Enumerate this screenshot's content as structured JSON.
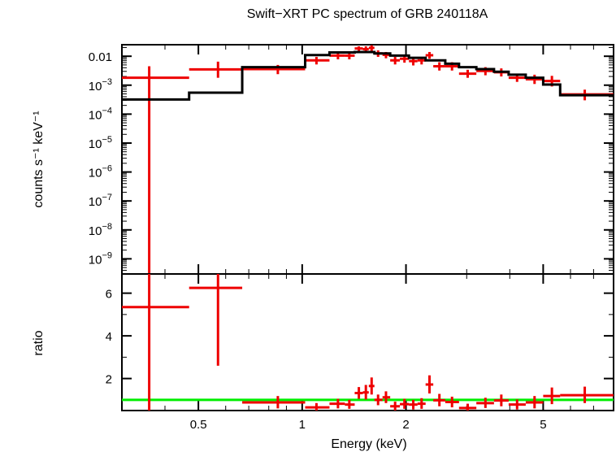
{
  "chart_data": {
    "type": "scatter",
    "title": "Swift−XRT PC spectrum of GRB 240118A",
    "xlabel": "Energy (keV)",
    "xscale": "log",
    "xlim": [
      0.3,
      8.0
    ],
    "x_ticks": [
      {
        "value": 0.5,
        "label": "0.5"
      },
      {
        "value": 1,
        "label": "1"
      },
      {
        "value": 2,
        "label": "2"
      },
      {
        "value": 5,
        "label": "5"
      }
    ],
    "colors": {
      "data": "#ee0000",
      "model": "#000000",
      "unity": "#00ee00",
      "axes": "#000000"
    },
    "panels": [
      {
        "name": "spectrum",
        "ylabel": "counts s⁻¹ keV⁻¹",
        "yscale": "log",
        "ylim": [
          3e-10,
          0.025
        ],
        "y_ticks": [
          {
            "value": 0.01,
            "label": "0.01"
          },
          {
            "value": 0.001,
            "base": "10",
            "exp": "−3"
          },
          {
            "value": 0.0001,
            "base": "10",
            "exp": "−4"
          },
          {
            "value": 1e-05,
            "base": "10",
            "exp": "−5"
          },
          {
            "value": 1e-06,
            "base": "10",
            "exp": "−6"
          },
          {
            "value": 1e-07,
            "base": "10",
            "exp": "−7"
          },
          {
            "value": 1e-08,
            "base": "10",
            "exp": "−8"
          },
          {
            "value": 1e-09,
            "base": "10",
            "exp": "−9"
          }
        ],
        "series": [
          {
            "style": "crosses",
            "points": [
              {
                "xlo": 0.3,
                "x": 0.36,
                "xhi": 0.47,
                "y": 0.0018,
                "ylo": 3e-10,
                "yhi": 0.0045
              },
              {
                "xlo": 0.47,
                "x": 0.57,
                "xhi": 0.67,
                "y": 0.0035,
                "ylo": 0.0018,
                "yhi": 0.0065
              },
              {
                "xlo": 0.67,
                "x": 0.85,
                "xhi": 1.02,
                "y": 0.0036,
                "ylo": 0.0024,
                "yhi": 0.005
              },
              {
                "xlo": 1.02,
                "x": 1.1,
                "xhi": 1.2,
                "y": 0.0072,
                "ylo": 0.0052,
                "yhi": 0.0095
              },
              {
                "xlo": 1.2,
                "x": 1.27,
                "xhi": 1.33,
                "y": 0.0105,
                "ylo": 0.0078,
                "yhi": 0.0135
              },
              {
                "xlo": 1.33,
                "x": 1.37,
                "xhi": 1.42,
                "y": 0.0105,
                "ylo": 0.0078,
                "yhi": 0.0135
              },
              {
                "xlo": 1.42,
                "x": 1.46,
                "xhi": 1.5,
                "y": 0.0185,
                "ylo": 0.015,
                "yhi": 0.022
              },
              {
                "xlo": 1.5,
                "x": 1.53,
                "xhi": 1.56,
                "y": 0.0175,
                "ylo": 0.013,
                "yhi": 0.022
              },
              {
                "xlo": 1.56,
                "x": 1.59,
                "xhi": 1.62,
                "y": 0.0195,
                "ylo": 0.015,
                "yhi": 0.024
              },
              {
                "xlo": 1.62,
                "x": 1.66,
                "xhi": 1.71,
                "y": 0.0125,
                "ylo": 0.0095,
                "yhi": 0.016
              },
              {
                "xlo": 1.71,
                "x": 1.75,
                "xhi": 1.8,
                "y": 0.0112,
                "ylo": 0.0085,
                "yhi": 0.014
              },
              {
                "xlo": 1.8,
                "x": 1.86,
                "xhi": 1.92,
                "y": 0.0072,
                "ylo": 0.0052,
                "yhi": 0.0095
              },
              {
                "xlo": 1.92,
                "x": 1.98,
                "xhi": 2.04,
                "y": 0.0082,
                "ylo": 0.006,
                "yhi": 0.011
              },
              {
                "xlo": 2.04,
                "x": 2.1,
                "xhi": 2.16,
                "y": 0.0068,
                "ylo": 0.0048,
                "yhi": 0.009
              },
              {
                "xlo": 2.16,
                "x": 2.22,
                "xhi": 2.28,
                "y": 0.0072,
                "ylo": 0.0052,
                "yhi": 0.0095
              },
              {
                "xlo": 2.28,
                "x": 2.34,
                "xhi": 2.4,
                "y": 0.0108,
                "ylo": 0.0082,
                "yhi": 0.014
              },
              {
                "xlo": 2.4,
                "x": 2.5,
                "xhi": 2.6,
                "y": 0.0045,
                "ylo": 0.0032,
                "yhi": 0.0062
              },
              {
                "xlo": 2.6,
                "x": 2.72,
                "xhi": 2.85,
                "y": 0.0045,
                "ylo": 0.0032,
                "yhi": 0.0062
              },
              {
                "xlo": 2.85,
                "x": 3.02,
                "xhi": 3.2,
                "y": 0.0025,
                "ylo": 0.0018,
                "yhi": 0.0034
              },
              {
                "xlo": 3.2,
                "x": 3.4,
                "xhi": 3.6,
                "y": 0.0031,
                "ylo": 0.0022,
                "yhi": 0.0042
              },
              {
                "xlo": 3.6,
                "x": 3.78,
                "xhi": 3.97,
                "y": 0.0028,
                "ylo": 0.002,
                "yhi": 0.0038
              },
              {
                "xlo": 3.97,
                "x": 4.2,
                "xhi": 4.45,
                "y": 0.0018,
                "ylo": 0.0013,
                "yhi": 0.0025
              },
              {
                "xlo": 4.45,
                "x": 4.72,
                "xhi": 5.0,
                "y": 0.0016,
                "ylo": 0.0011,
                "yhi": 0.0023
              },
              {
                "xlo": 5.0,
                "x": 5.3,
                "xhi": 5.6,
                "y": 0.0014,
                "ylo": 0.0009,
                "yhi": 0.0021
              },
              {
                "xlo": 5.6,
                "x": 6.6,
                "xhi": 8.0,
                "y": 0.00048,
                "ylo": 0.0003,
                "yhi": 0.0007
              }
            ]
          },
          {
            "style": "steps",
            "steps": [
              {
                "xlo": 0.3,
                "xhi": 0.47,
                "y": 0.00032
              },
              {
                "xlo": 0.47,
                "xhi": 0.67,
                "y": 0.00055
              },
              {
                "xlo": 0.67,
                "xhi": 1.02,
                "y": 0.0042
              },
              {
                "xlo": 1.02,
                "xhi": 1.2,
                "y": 0.011
              },
              {
                "xlo": 1.2,
                "xhi": 1.42,
                "y": 0.0135
              },
              {
                "xlo": 1.42,
                "xhi": 1.62,
                "y": 0.014
              },
              {
                "xlo": 1.62,
                "xhi": 1.8,
                "y": 0.0125
              },
              {
                "xlo": 1.8,
                "xhi": 2.04,
                "y": 0.0105
              },
              {
                "xlo": 2.04,
                "xhi": 2.28,
                "y": 0.0088
              },
              {
                "xlo": 2.28,
                "xhi": 2.6,
                "y": 0.0072
              },
              {
                "xlo": 2.6,
                "xhi": 2.85,
                "y": 0.0055
              },
              {
                "xlo": 2.85,
                "xhi": 3.2,
                "y": 0.0042
              },
              {
                "xlo": 3.2,
                "xhi": 3.6,
                "y": 0.0036
              },
              {
                "xlo": 3.6,
                "xhi": 3.97,
                "y": 0.0029
              },
              {
                "xlo": 3.97,
                "xhi": 4.45,
                "y": 0.0023
              },
              {
                "xlo": 4.45,
                "xhi": 5.0,
                "y": 0.0018
              },
              {
                "xlo": 5.0,
                "xhi": 5.6,
                "y": 0.00105
              },
              {
                "xlo": 5.6,
                "xhi": 8.0,
                "y": 0.00045
              }
            ]
          }
        ]
      },
      {
        "name": "ratio",
        "ylabel": "ratio",
        "yscale": "linear",
        "ylim": [
          0.5,
          6.9
        ],
        "y_ticks": [
          {
            "value": 2,
            "label": "2"
          },
          {
            "value": 4,
            "label": "4"
          },
          {
            "value": 6,
            "label": "6"
          }
        ],
        "reference_line": 1.0,
        "series": [
          {
            "style": "crosses",
            "points": [
              {
                "xlo": 0.3,
                "x": 0.36,
                "xhi": 0.47,
                "y": 5.35,
                "ylo": 0.5,
                "yhi": 6.9
              },
              {
                "xlo": 0.47,
                "x": 0.57,
                "xhi": 0.67,
                "y": 6.25,
                "ylo": 2.6,
                "yhi": 6.9
              },
              {
                "xlo": 0.67,
                "x": 0.85,
                "xhi": 1.02,
                "y": 0.88,
                "ylo": 0.6,
                "yhi": 1.18
              },
              {
                "xlo": 1.02,
                "x": 1.1,
                "xhi": 1.2,
                "y": 0.65,
                "ylo": 0.48,
                "yhi": 0.85
              },
              {
                "xlo": 1.2,
                "x": 1.27,
                "xhi": 1.33,
                "y": 0.82,
                "ylo": 0.6,
                "yhi": 1.05
              },
              {
                "xlo": 1.33,
                "x": 1.37,
                "xhi": 1.42,
                "y": 0.78,
                "ylo": 0.58,
                "yhi": 1.0
              },
              {
                "xlo": 1.42,
                "x": 1.46,
                "xhi": 1.5,
                "y": 1.32,
                "ylo": 1.05,
                "yhi": 1.6
              },
              {
                "xlo": 1.5,
                "x": 1.53,
                "xhi": 1.56,
                "y": 1.35,
                "ylo": 1.02,
                "yhi": 1.7
              },
              {
                "xlo": 1.56,
                "x": 1.59,
                "xhi": 1.62,
                "y": 1.65,
                "ylo": 1.25,
                "yhi": 2.05
              },
              {
                "xlo": 1.62,
                "x": 1.66,
                "xhi": 1.71,
                "y": 1.0,
                "ylo": 0.75,
                "yhi": 1.25
              },
              {
                "xlo": 1.71,
                "x": 1.75,
                "xhi": 1.8,
                "y": 1.12,
                "ylo": 0.85,
                "yhi": 1.4
              },
              {
                "xlo": 1.8,
                "x": 1.86,
                "xhi": 1.92,
                "y": 0.7,
                "ylo": 0.5,
                "yhi": 0.92
              },
              {
                "xlo": 1.92,
                "x": 1.98,
                "xhi": 2.04,
                "y": 0.8,
                "ylo": 0.58,
                "yhi": 1.05
              },
              {
                "xlo": 2.04,
                "x": 2.1,
                "xhi": 2.16,
                "y": 0.78,
                "ylo": 0.55,
                "yhi": 1.0
              },
              {
                "xlo": 2.16,
                "x": 2.22,
                "xhi": 2.28,
                "y": 0.82,
                "ylo": 0.58,
                "yhi": 1.08
              },
              {
                "xlo": 2.28,
                "x": 2.34,
                "xhi": 2.4,
                "y": 1.72,
                "ylo": 1.3,
                "yhi": 2.15
              },
              {
                "xlo": 2.4,
                "x": 2.5,
                "xhi": 2.6,
                "y": 0.98,
                "ylo": 0.7,
                "yhi": 1.28
              },
              {
                "xlo": 2.6,
                "x": 2.72,
                "xhi": 2.85,
                "y": 0.9,
                "ylo": 0.65,
                "yhi": 1.15
              },
              {
                "xlo": 2.85,
                "x": 3.02,
                "xhi": 3.2,
                "y": 0.62,
                "ylo": 0.45,
                "yhi": 0.82
              },
              {
                "xlo": 3.2,
                "x": 3.4,
                "xhi": 3.6,
                "y": 0.85,
                "ylo": 0.62,
                "yhi": 1.1
              },
              {
                "xlo": 3.6,
                "x": 3.78,
                "xhi": 3.97,
                "y": 0.97,
                "ylo": 0.7,
                "yhi": 1.25
              },
              {
                "xlo": 3.97,
                "x": 4.2,
                "xhi": 4.45,
                "y": 0.78,
                "ylo": 0.55,
                "yhi": 1.02
              },
              {
                "xlo": 4.45,
                "x": 4.72,
                "xhi": 5.0,
                "y": 0.88,
                "ylo": 0.6,
                "yhi": 1.18
              },
              {
                "xlo": 5.0,
                "x": 5.3,
                "xhi": 5.6,
                "y": 1.18,
                "ylo": 0.8,
                "yhi": 1.58
              },
              {
                "xlo": 5.6,
                "x": 6.6,
                "xhi": 8.0,
                "y": 1.22,
                "ylo": 0.85,
                "yhi": 1.62
              }
            ]
          }
        ]
      }
    ]
  }
}
